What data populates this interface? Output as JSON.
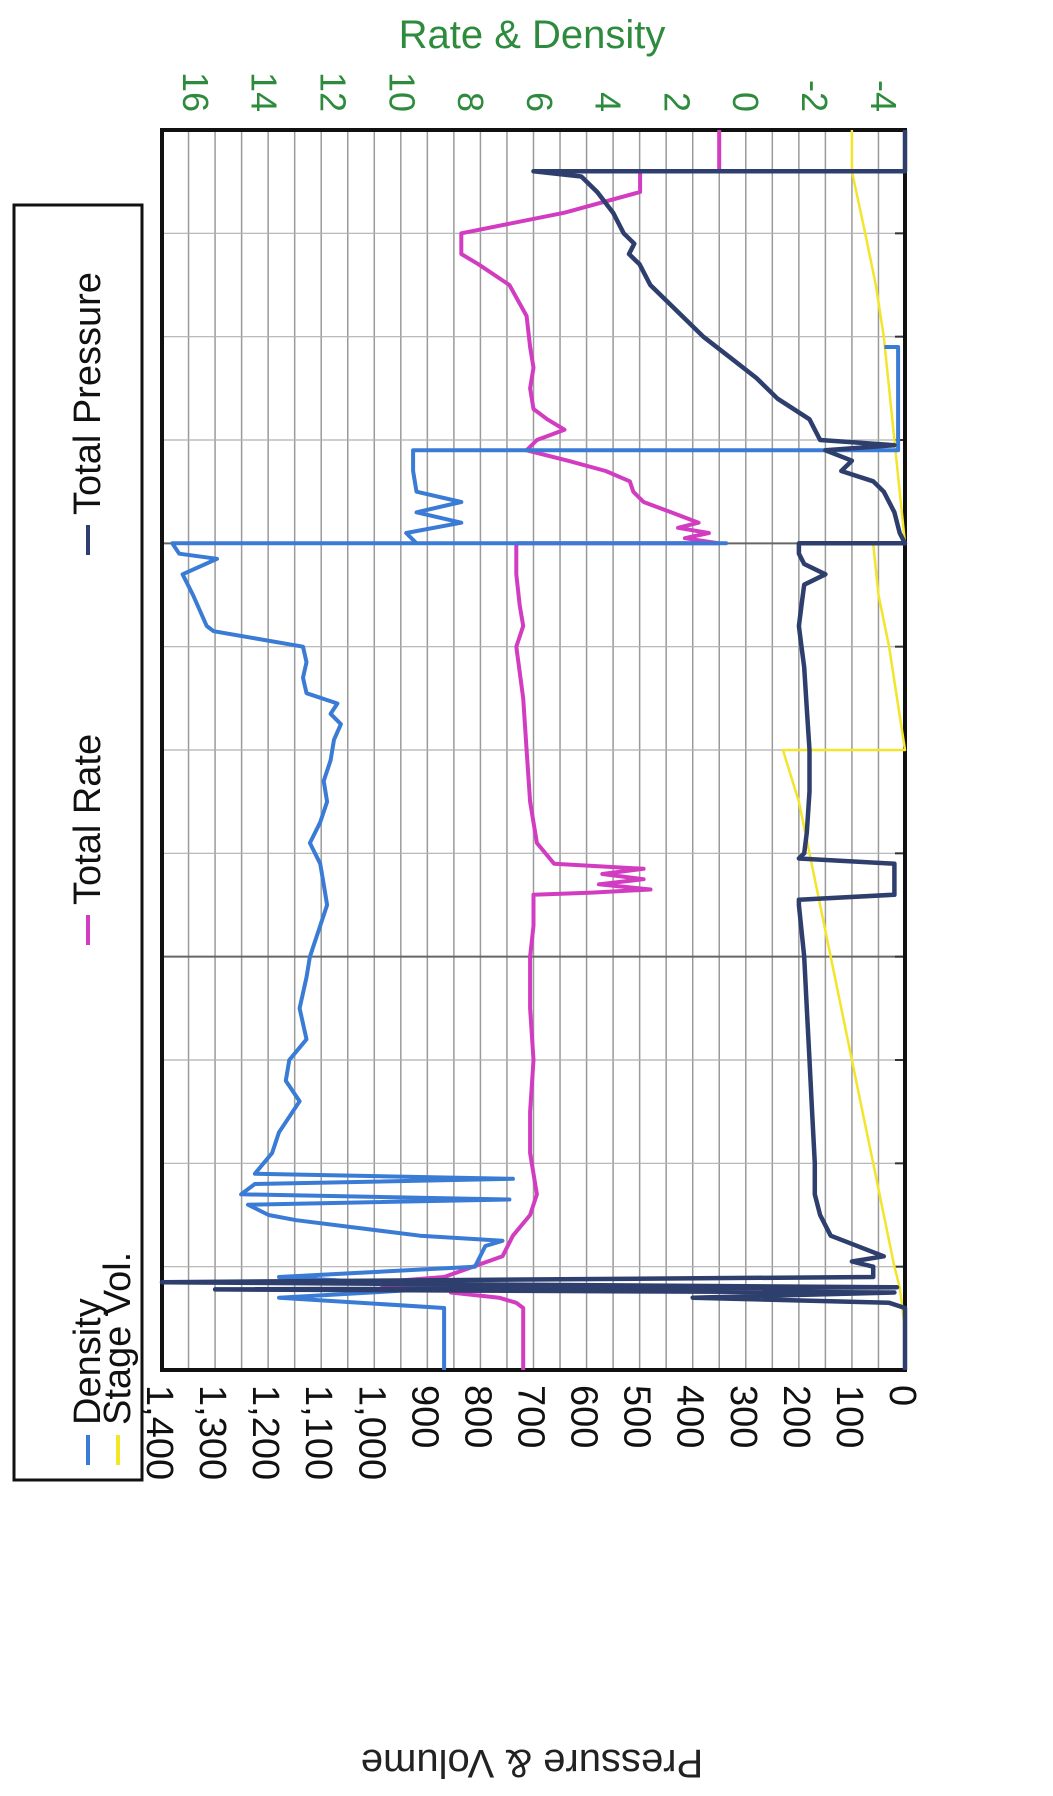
{
  "chart_data": {
    "type": "line",
    "orientation": "rotated-90-ccw",
    "top_axis_title": "Rate & Density",
    "bottom_axis_title": "Pressure & Volume",
    "top_axis_ticks": [
      "16",
      "14",
      "12",
      "10",
      "8",
      "6",
      "4",
      "2",
      "0",
      "-2",
      "-4"
    ],
    "bottom_axis_ticks": [
      "1,400",
      "1,300",
      "1,200",
      "1,100",
      "1,000",
      "900",
      "800",
      "700",
      "600",
      "500",
      "400",
      "300",
      "200",
      "100",
      "0"
    ],
    "rate_density_range": [
      -5.4,
      16.2
    ],
    "pressure_volume_range": [
      0,
      1400
    ],
    "grid": true,
    "legend_position": "left",
    "colors": {
      "density": "#3a7bd5",
      "total_rate": "#d23cc0",
      "total_pressure": "#2e3f6e",
      "stage_vol": "#f2e52a",
      "axis_title": "#2e8b3d",
      "top_ticks": "#2e8b3d"
    },
    "legend": {
      "density": "Density",
      "stage_vol": "Stage Vol.",
      "total_rate": "Total Rate",
      "total_pressure": "Total Pressure"
    },
    "series": [
      {
        "key": "density",
        "axis": "rate_density",
        "points": [
          [
            0,
            8.0
          ],
          [
            0.06,
            8.0
          ],
          [
            0.07,
            12.8
          ],
          [
            0.08,
            7.5
          ],
          [
            0.09,
            12.8
          ],
          [
            0.1,
            7.1
          ],
          [
            0.12,
            6.8
          ],
          [
            0.125,
            6.3
          ],
          [
            0.13,
            8.7
          ],
          [
            0.145,
            12.3
          ],
          [
            0.15,
            13.1
          ],
          [
            0.16,
            13.7
          ],
          [
            0.165,
            6.1
          ],
          [
            0.17,
            13.9
          ],
          [
            0.18,
            13.5
          ],
          [
            0.185,
            6.0
          ],
          [
            0.19,
            13.5
          ],
          [
            0.21,
            13.0
          ],
          [
            0.23,
            12.8
          ],
          [
            0.26,
            12.2
          ],
          [
            0.28,
            12.6
          ],
          [
            0.3,
            12.5
          ],
          [
            0.32,
            12.0
          ],
          [
            0.35,
            12.2
          ],
          [
            0.38,
            12.0
          ],
          [
            0.4,
            11.9
          ],
          [
            0.42,
            11.7
          ],
          [
            0.45,
            11.4
          ],
          [
            0.47,
            11.5
          ],
          [
            0.49,
            11.6
          ],
          [
            0.51,
            11.9
          ],
          [
            0.53,
            11.6
          ],
          [
            0.55,
            11.4
          ],
          [
            0.57,
            11.5
          ],
          [
            0.59,
            11.3
          ],
          [
            0.61,
            11.2
          ],
          [
            0.625,
            11.0
          ],
          [
            0.635,
            11.3
          ],
          [
            0.645,
            11.1
          ],
          [
            0.655,
            12.0
          ],
          [
            0.67,
            12.1
          ],
          [
            0.685,
            12.0
          ],
          [
            0.7,
            12.1
          ],
          [
            0.715,
            14.7
          ],
          [
            0.72,
            14.9
          ],
          [
            0.75,
            15.3
          ],
          [
            0.77,
            15.6
          ],
          [
            0.785,
            14.6
          ],
          [
            0.79,
            15.7
          ],
          [
            0.8,
            15.9
          ],
          [
            0.8,
            -0.2
          ],
          [
            0.8,
            8.8
          ],
          [
            0.81,
            9.1
          ],
          [
            0.82,
            7.5
          ],
          [
            0.83,
            8.8
          ],
          [
            0.84,
            7.5
          ],
          [
            0.85,
            8.8
          ],
          [
            0.87,
            8.9
          ],
          [
            0.89,
            8.9
          ],
          [
            0.89,
            -5.2
          ],
          [
            0.99,
            -5.2
          ],
          [
            0.99,
            -4.8
          ]
        ]
      },
      {
        "key": "total_rate",
        "axis": "rate_density",
        "points": [
          [
            0,
            5.7
          ],
          [
            0.06,
            5.7
          ],
          [
            0.065,
            5.9
          ],
          [
            0.07,
            6.4
          ],
          [
            0.075,
            7.8
          ],
          [
            0.078,
            6.2
          ],
          [
            0.08,
            9.8
          ],
          [
            0.082,
            6.5
          ],
          [
            0.085,
            9.9
          ],
          [
            0.09,
            8.0
          ],
          [
            0.11,
            6.3
          ],
          [
            0.13,
            6.0
          ],
          [
            0.15,
            5.5
          ],
          [
            0.17,
            5.3
          ],
          [
            0.19,
            5.4
          ],
          [
            0.21,
            5.5
          ],
          [
            0.25,
            5.5
          ],
          [
            0.3,
            5.4
          ],
          [
            0.35,
            5.5
          ],
          [
            0.4,
            5.5
          ],
          [
            0.43,
            5.4
          ],
          [
            0.46,
            5.4
          ],
          [
            0.462,
            3.7
          ],
          [
            0.465,
            2.0
          ],
          [
            0.47,
            3.5
          ],
          [
            0.475,
            2.2
          ],
          [
            0.48,
            3.4
          ],
          [
            0.485,
            2.2
          ],
          [
            0.49,
            4.8
          ],
          [
            0.51,
            5.3
          ],
          [
            0.55,
            5.5
          ],
          [
            0.6,
            5.6
          ],
          [
            0.65,
            5.7
          ],
          [
            0.7,
            5.9
          ],
          [
            0.72,
            5.7
          ],
          [
            0.74,
            5.8
          ],
          [
            0.77,
            5.9
          ],
          [
            0.8,
            5.9
          ],
          [
            0.8,
            0.0
          ],
          [
            0.805,
            1.0
          ],
          [
            0.81,
            0.3
          ],
          [
            0.815,
            1.2
          ],
          [
            0.82,
            0.6
          ],
          [
            0.83,
            1.4
          ],
          [
            0.84,
            2.2
          ],
          [
            0.85,
            2.5
          ],
          [
            0.86,
            2.6
          ],
          [
            0.87,
            3.3
          ],
          [
            0.88,
            4.4
          ],
          [
            0.89,
            5.6
          ],
          [
            0.9,
            5.3
          ],
          [
            0.91,
            4.5
          ],
          [
            0.92,
            5.0
          ],
          [
            0.93,
            5.4
          ],
          [
            0.95,
            5.5
          ],
          [
            0.97,
            5.4
          ],
          [
            0.99,
            5.5
          ],
          [
            1.02,
            5.6
          ],
          [
            1.05,
            6.1
          ],
          [
            1.07,
            7.0
          ],
          [
            1.08,
            7.5
          ],
          [
            1.1,
            7.5
          ],
          [
            1.12,
            4.5
          ],
          [
            1.14,
            2.3
          ],
          [
            1.16,
            2.3
          ],
          [
            1.16,
            0.0
          ],
          [
            1.2,
            0.0
          ]
        ]
      },
      {
        "key": "total_pressure",
        "axis": "pressure_volume",
        "points": [
          [
            0,
            0
          ],
          [
            0.06,
            0
          ],
          [
            0.065,
            30
          ],
          [
            0.07,
            400
          ],
          [
            0.075,
            20
          ],
          [
            0.078,
            1300
          ],
          [
            0.08,
            15
          ],
          [
            0.085,
            1400
          ],
          [
            0.09,
            60
          ],
          [
            0.1,
            60
          ],
          [
            0.105,
            100
          ],
          [
            0.11,
            40
          ],
          [
            0.13,
            140
          ],
          [
            0.15,
            160
          ],
          [
            0.17,
            170
          ],
          [
            0.2,
            170
          ],
          [
            0.25,
            175
          ],
          [
            0.3,
            180
          ],
          [
            0.35,
            185
          ],
          [
            0.4,
            190
          ],
          [
            0.45,
            200
          ],
          [
            0.455,
            200
          ],
          [
            0.46,
            20
          ],
          [
            0.49,
            20
          ],
          [
            0.495,
            200
          ],
          [
            0.5,
            190
          ],
          [
            0.52,
            185
          ],
          [
            0.56,
            180
          ],
          [
            0.6,
            180
          ],
          [
            0.64,
            185
          ],
          [
            0.68,
            190
          ],
          [
            0.7,
            195
          ],
          [
            0.72,
            200
          ],
          [
            0.74,
            195
          ],
          [
            0.76,
            190
          ],
          [
            0.77,
            150
          ],
          [
            0.78,
            190
          ],
          [
            0.79,
            200
          ],
          [
            0.8,
            200
          ],
          [
            0.8,
            0
          ],
          [
            0.81,
            10
          ],
          [
            0.83,
            20
          ],
          [
            0.85,
            40
          ],
          [
            0.86,
            60
          ],
          [
            0.87,
            120
          ],
          [
            0.88,
            100
          ],
          [
            0.89,
            150
          ],
          [
            0.895,
            20
          ],
          [
            0.9,
            160
          ],
          [
            0.92,
            180
          ],
          [
            0.94,
            240
          ],
          [
            0.96,
            280
          ],
          [
            0.98,
            330
          ],
          [
            1.0,
            380
          ],
          [
            1.02,
            420
          ],
          [
            1.05,
            480
          ],
          [
            1.07,
            500
          ],
          [
            1.08,
            520
          ],
          [
            1.09,
            510
          ],
          [
            1.1,
            530
          ],
          [
            1.12,
            550
          ],
          [
            1.14,
            580
          ],
          [
            1.155,
            610
          ],
          [
            1.16,
            700
          ],
          [
            1.16,
            0
          ],
          [
            1.2,
            0
          ]
        ]
      },
      {
        "key": "stage_vol",
        "axis": "pressure_volume",
        "points": [
          [
            0,
            0
          ],
          [
            0.04,
            0
          ],
          [
            0.08,
            10
          ],
          [
            0.1,
            20
          ],
          [
            0.15,
            40
          ],
          [
            0.2,
            60
          ],
          [
            0.25,
            80
          ],
          [
            0.3,
            100
          ],
          [
            0.35,
            120
          ],
          [
            0.4,
            140
          ],
          [
            0.45,
            160
          ],
          [
            0.5,
            180
          ],
          [
            0.55,
            200
          ],
          [
            0.6,
            230
          ],
          [
            0.6,
            0
          ],
          [
            0.7,
            30
          ],
          [
            0.75,
            50
          ],
          [
            0.8,
            60
          ],
          [
            0.8,
            0
          ],
          [
            0.85,
            10
          ],
          [
            0.9,
            20
          ],
          [
            0.95,
            30
          ],
          [
            1.0,
            40
          ],
          [
            1.05,
            55
          ],
          [
            1.1,
            75
          ],
          [
            1.16,
            100
          ],
          [
            1.2,
            100
          ]
        ]
      }
    ]
  }
}
